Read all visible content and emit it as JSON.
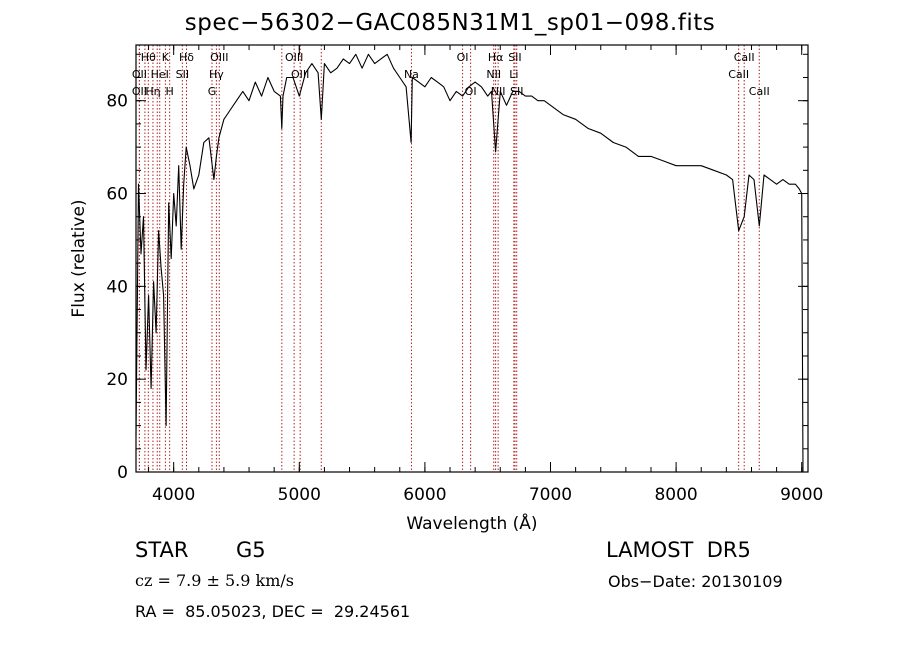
{
  "header": {
    "title": "spec−56302−GAC085N31M1_sp01−098.fits"
  },
  "info": {
    "class": "STAR",
    "subclass": "G5",
    "survey": "LAMOST  DR5",
    "cz": "cz = 7.9 ± 5.9 km/s",
    "obs_date": "Obs−Date: 20130109",
    "radec": "RA =  85.05023, DEC =  29.24561"
  },
  "chart_data": {
    "type": "line",
    "title": "spec−56302−GAC085N31M1_sp01−098.fits",
    "xlabel": "Wavelength (Å)",
    "ylabel": "Flux (relative)",
    "xlim": [
      3700,
      9050
    ],
    "ylim": [
      0,
      92
    ],
    "xticks": [
      4000,
      5000,
      6000,
      7000,
      8000,
      9000
    ],
    "yticks": [
      0,
      20,
      40,
      60,
      80
    ],
    "grid": false,
    "colors": {
      "spectrum": "#000000",
      "lines": "#b22222",
      "axes": "#000000"
    },
    "series": [
      {
        "x": [
          3700,
          3720,
          3740,
          3760,
          3780,
          3800,
          3820,
          3840,
          3860,
          3880,
          3900,
          3920,
          3940,
          3960,
          3980,
          4000,
          4020,
          4040,
          4060,
          4080,
          4100,
          4130,
          4160,
          4200,
          4240,
          4280,
          4320,
          4340,
          4360,
          4400,
          4450,
          4500,
          4550,
          4600,
          4650,
          4700,
          4750,
          4800,
          4850,
          4861,
          4870,
          4900,
          4950,
          5000,
          5050,
          5100,
          5150,
          5175,
          5200,
          5250,
          5300,
          5350,
          5400,
          5450,
          5500,
          5550,
          5600,
          5650,
          5700,
          5750,
          5800,
          5850,
          5890,
          5900,
          5950,
          6000,
          6050,
          6100,
          6150,
          6200,
          6250,
          6300,
          6350,
          6400,
          6450,
          6500,
          6530,
          6563,
          6600,
          6650,
          6700,
          6750,
          6800,
          6850,
          6900,
          6950,
          7000,
          7100,
          7200,
          7300,
          7400,
          7500,
          7600,
          7700,
          7800,
          7900,
          8000,
          8100,
          8200,
          8300,
          8400,
          8450,
          8498,
          8542,
          8580,
          8620,
          8662,
          8700,
          8750,
          8800,
          8850,
          8900,
          8950,
          8980,
          9000,
          9010
        ],
        "y": [
          8,
          62,
          47,
          55,
          22,
          38,
          18,
          41,
          30,
          52,
          44,
          38,
          10,
          58,
          46,
          60,
          53,
          66,
          48,
          62,
          70,
          66,
          61,
          64,
          71,
          72,
          63,
          68,
          72,
          76,
          78,
          80,
          82,
          80,
          84,
          81,
          85,
          82,
          81,
          74,
          81,
          85,
          85,
          81,
          86,
          88,
          86,
          76,
          88,
          86,
          87,
          89,
          88,
          90,
          87,
          90,
          88,
          89,
          90,
          87,
          85,
          83,
          71,
          85,
          84,
          83,
          85,
          84,
          83,
          80,
          82,
          81,
          83,
          84,
          83,
          81,
          82,
          69,
          82,
          79,
          82,
          82,
          81,
          81,
          80,
          80,
          79,
          77,
          76,
          74,
          73,
          71,
          70,
          68,
          68,
          67,
          66,
          66,
          66,
          65,
          64,
          63,
          52,
          55,
          64,
          63,
          53,
          64,
          63,
          62,
          63,
          62,
          62,
          61,
          60,
          0
        ]
      }
    ],
    "spectral_lines": [
      {
        "label": "Hθ",
        "wavelength": 3798,
        "row": 0
      },
      {
        "label": "K",
        "wavelength": 3934,
        "row": 0
      },
      {
        "label": "Hδ",
        "wavelength": 4102,
        "row": 0
      },
      {
        "label": "OIII",
        "wavelength": 4363,
        "row": 0
      },
      {
        "label": "OIII",
        "wavelength": 4959,
        "row": 0
      },
      {
        "label": "OI",
        "wavelength": 6300,
        "row": 0
      },
      {
        "label": "Hα",
        "wavelength": 6563,
        "row": 0
      },
      {
        "label": "SII",
        "wavelength": 6717,
        "row": 0
      },
      {
        "label": "CaII",
        "wavelength": 8542,
        "row": 0
      },
      {
        "label": "OII",
        "wavelength": 3727,
        "row": 1
      },
      {
        "label": "HeI",
        "wavelength": 3889,
        "row": 1
      },
      {
        "label": "SII",
        "wavelength": 4069,
        "row": 1
      },
      {
        "label": "Hγ",
        "wavelength": 4340,
        "row": 1
      },
      {
        "label": "OIII",
        "wavelength": 5007,
        "row": 1
      },
      {
        "label": "Na",
        "wavelength": 5893,
        "row": 1
      },
      {
        "label": "NII",
        "wavelength": 6548,
        "row": 1
      },
      {
        "label": "Li",
        "wavelength": 6708,
        "row": 1
      },
      {
        "label": "CaII",
        "wavelength": 8498,
        "row": 1
      },
      {
        "label": "OII",
        "wavelength": 3727,
        "row": 2
      },
      {
        "label": "Hη",
        "wavelength": 3835,
        "row": 2
      },
      {
        "label": "H",
        "wavelength": 3968,
        "row": 2
      },
      {
        "label": "G",
        "wavelength": 4305,
        "row": 2
      },
      {
        "label": "OI",
        "wavelength": 6364,
        "row": 2
      },
      {
        "label": "NII",
        "wavelength": 6583,
        "row": 2
      },
      {
        "label": "SII",
        "wavelength": 6731,
        "row": 2
      },
      {
        "label": "CaII",
        "wavelength": 8662,
        "row": 2
      },
      {
        "label": "",
        "wavelength": 3771,
        "row": 0
      },
      {
        "label": "",
        "wavelength": 3869,
        "row": 0
      },
      {
        "label": "",
        "wavelength": 4861,
        "row": 0
      },
      {
        "label": "",
        "wavelength": 5175,
        "row": 0
      }
    ]
  }
}
